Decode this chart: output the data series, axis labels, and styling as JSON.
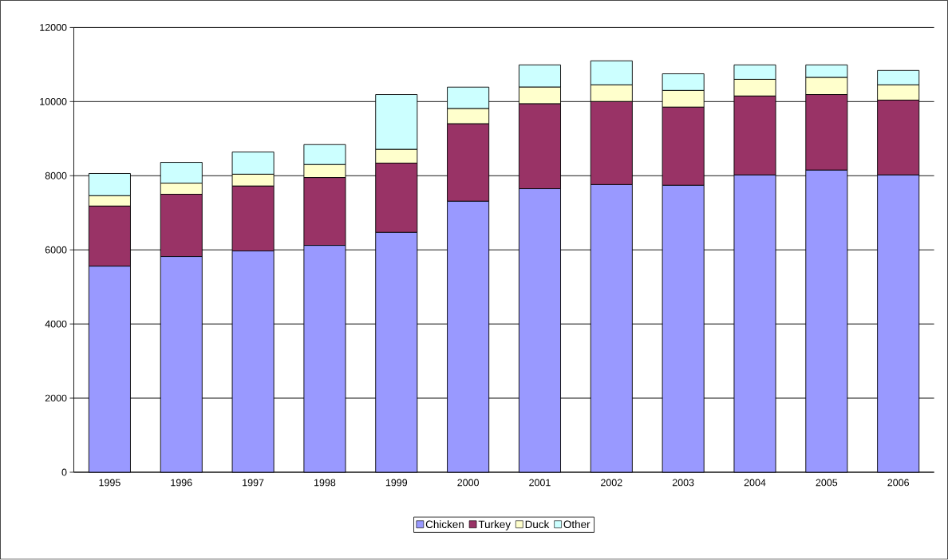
{
  "chart_data": {
    "type": "bar",
    "stacked": true,
    "categories": [
      "1995",
      "1996",
      "1997",
      "1998",
      "1999",
      "2000",
      "2001",
      "2002",
      "2003",
      "2004",
      "2005",
      "2006"
    ],
    "series": [
      {
        "name": "Chicken",
        "color": "#9999ff",
        "values": [
          5560,
          5820,
          5970,
          6120,
          6470,
          7310,
          7650,
          7760,
          7740,
          8020,
          8150,
          8020
        ]
      },
      {
        "name": "Turkey",
        "color": "#993366",
        "values": [
          1620,
          1680,
          1750,
          1830,
          1870,
          2090,
          2290,
          2240,
          2110,
          2130,
          2040,
          2020
        ]
      },
      {
        "name": "Duck",
        "color": "#ffffcc",
        "values": [
          280,
          300,
          320,
          350,
          370,
          410,
          450,
          450,
          450,
          450,
          460,
          410
        ]
      },
      {
        "name": "Other",
        "color": "#ccffff",
        "values": [
          600,
          560,
          600,
          540,
          1480,
          580,
          600,
          650,
          450,
          390,
          340,
          390
        ]
      }
    ],
    "ylim": [
      0,
      12000
    ],
    "yticks": [
      0,
      2000,
      4000,
      6000,
      8000,
      10000,
      12000
    ],
    "grid": "y",
    "legend": "bottom"
  }
}
